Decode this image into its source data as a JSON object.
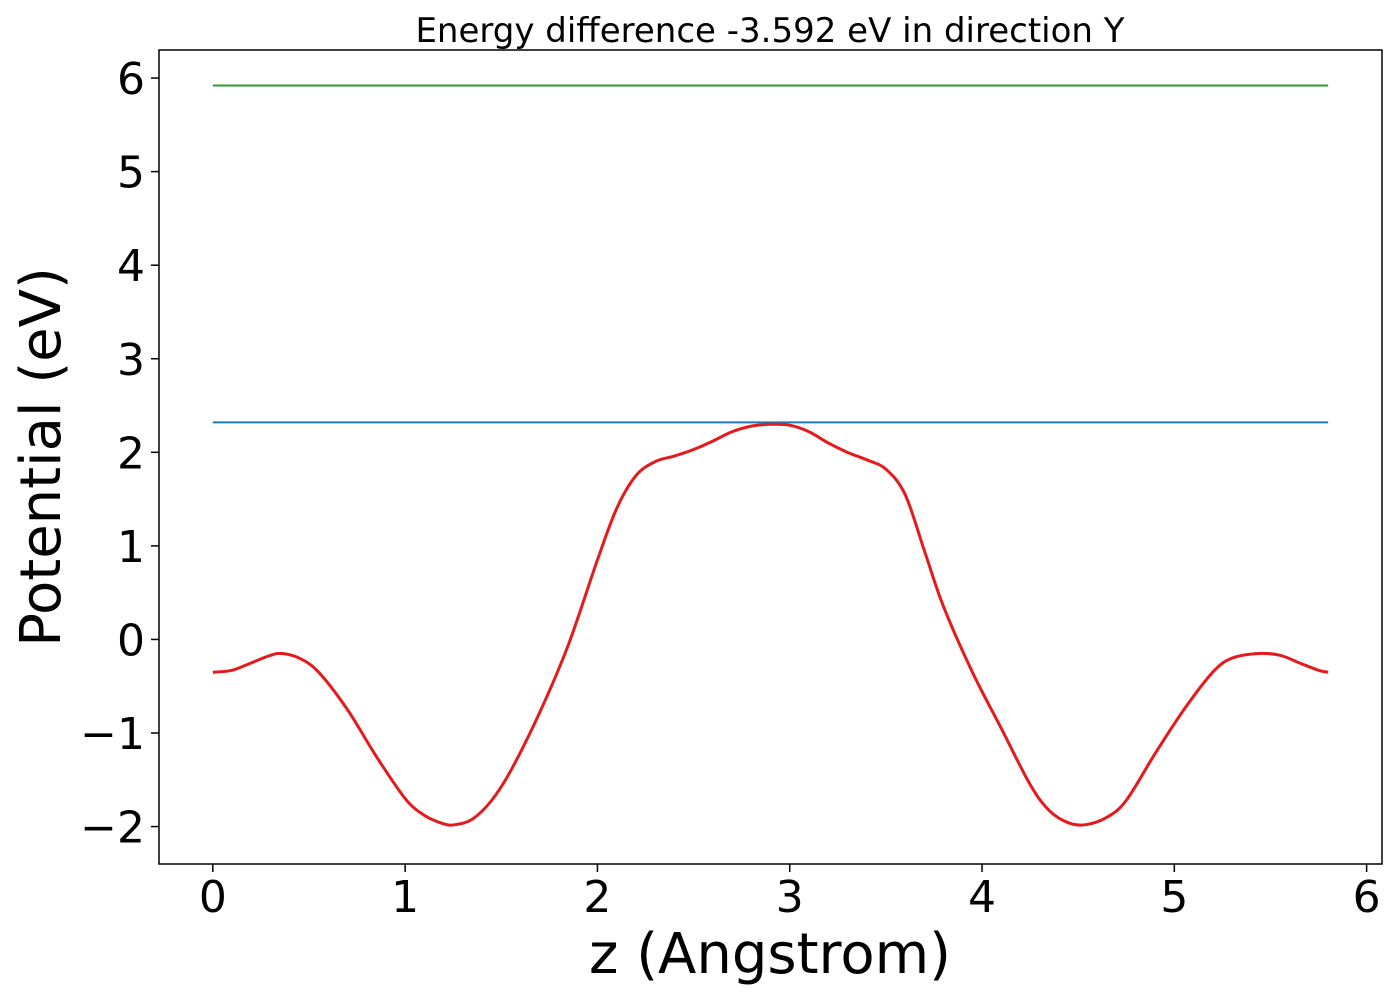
{
  "chart_data": {
    "type": "line",
    "title": "Energy difference -3.592 eV in direction Y",
    "xlabel": "z (Angstrom)",
    "ylabel": "Potential (eV)",
    "xlim": [
      -0.28,
      6.08
    ],
    "ylim": [
      -2.4,
      6.3
    ],
    "x_ticks": [
      0,
      1,
      2,
      3,
      4,
      5,
      6
    ],
    "x_tick_labels": [
      "0",
      "1",
      "2",
      "3",
      "4",
      "5",
      "6"
    ],
    "y_ticks": [
      -2,
      -1,
      0,
      1,
      2,
      3,
      4,
      5,
      6
    ],
    "y_tick_labels": [
      "−2",
      "−1",
      "0",
      "1",
      "2",
      "3",
      "4",
      "5",
      "6"
    ],
    "grid": false,
    "legend": "none",
    "series": [
      {
        "color": "#2ca02c",
        "x": [
          0,
          5.8
        ],
        "y": [
          5.92,
          5.92
        ]
      },
      {
        "color": "#1f77b4",
        "x": [
          0,
          5.8
        ],
        "y": [
          2.32,
          2.32
        ]
      },
      {
        "color": "#e41a1c",
        "x": [
          0,
          0.1,
          0.2,
          0.3,
          0.36,
          0.45,
          0.55,
          0.7,
          0.85,
          1.0,
          1.1,
          1.2,
          1.26,
          1.35,
          1.45,
          1.55,
          1.7,
          1.85,
          2.0,
          2.1,
          2.2,
          2.3,
          2.4,
          2.5,
          2.6,
          2.7,
          2.8,
          2.9,
          3.0,
          3.1,
          3.2,
          3.3,
          3.4,
          3.5,
          3.6,
          3.7,
          3.8,
          3.95,
          4.1,
          4.25,
          4.35,
          4.45,
          4.54,
          4.65,
          4.75,
          4.9,
          5.05,
          5.2,
          5.3,
          5.44,
          5.55,
          5.65,
          5.75,
          5.8
        ],
        "y": [
          -0.35,
          -0.33,
          -0.25,
          -0.17,
          -0.15,
          -0.2,
          -0.35,
          -0.75,
          -1.25,
          -1.7,
          -1.88,
          -1.97,
          -1.98,
          -1.92,
          -1.72,
          -1.4,
          -0.78,
          -0.05,
          0.85,
          1.4,
          1.75,
          1.9,
          1.96,
          2.03,
          2.12,
          2.22,
          2.28,
          2.3,
          2.29,
          2.22,
          2.1,
          2.0,
          1.92,
          1.82,
          1.55,
          0.95,
          0.35,
          -0.35,
          -0.95,
          -1.55,
          -1.83,
          -1.96,
          -1.98,
          -1.9,
          -1.72,
          -1.22,
          -0.75,
          -0.35,
          -0.2,
          -0.15,
          -0.17,
          -0.25,
          -0.33,
          -0.35
        ]
      }
    ]
  }
}
